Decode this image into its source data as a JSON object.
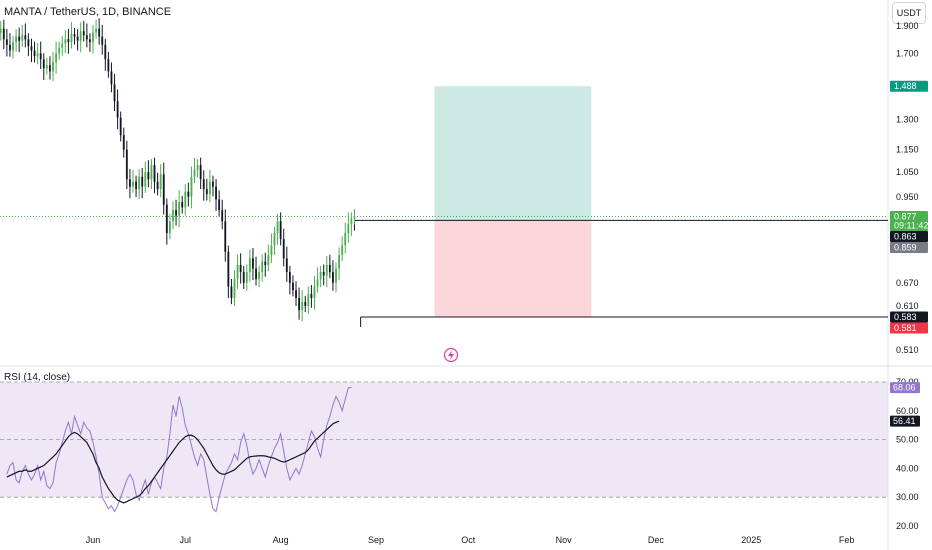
{
  "header": {
    "title": "MANTA / TetherUS, 1D, BINANCE",
    "currency": "USDT"
  },
  "colors": {
    "up": "#26a69a",
    "candle_up": "#4caf50",
    "candle_down": "#131722",
    "tp_zone": "#cde9e3",
    "sl_zone": "#fbd6da",
    "rsi": "#9575cd",
    "rsi_ma": "#131722",
    "rsi_band": "#ede7f6"
  },
  "icons": {
    "lightning": "lightning-icon"
  },
  "chart_data": [
    {
      "type": "candlestick",
      "title": "MANTA / TetherUS, 1D, BINANCE",
      "y_ticks": [
        1.9,
        1.7,
        1.3,
        1.15,
        1.05,
        0.95,
        0.67,
        0.61,
        0.51
      ],
      "y_tick_labels": [
        "1.900",
        "1.700",
        "1.300",
        "1.150",
        "1.050",
        "0.950",
        "0.670",
        "0.610",
        "0.510"
      ],
      "y_scale": "log",
      "x_tick_labels": [
        "Jun",
        "Jul",
        "Aug",
        "Sep",
        "Oct",
        "Nov",
        "Dec",
        "2025",
        "Feb"
      ],
      "x_tick_dates": [
        "2024-06-01",
        "2024-07-01",
        "2024-08-01",
        "2024-09-01",
        "2024-10-01",
        "2024-11-01",
        "2024-12-01",
        "2025-01-01",
        "2025-02-01"
      ],
      "ohlc_start": "2024-05-01",
      "closes": [
        1.85,
        1.88,
        1.8,
        1.76,
        1.72,
        1.78,
        1.82,
        1.79,
        1.83,
        1.8,
        1.75,
        1.72,
        1.68,
        1.7,
        1.66,
        1.6,
        1.62,
        1.58,
        1.64,
        1.7,
        1.74,
        1.77,
        1.8,
        1.78,
        1.84,
        1.82,
        1.79,
        1.86,
        1.83,
        1.8,
        1.78,
        1.85,
        1.88,
        1.82,
        1.76,
        1.66,
        1.58,
        1.5,
        1.4,
        1.31,
        1.22,
        1.15,
        1.02,
        0.99,
        1.01,
        0.98,
        1.03,
        0.99,
        1.05,
        1.02,
        1.08,
        1.01,
        0.98,
        1.04,
        0.92,
        0.82,
        0.86,
        0.9,
        0.88,
        0.93,
        0.91,
        0.97,
        0.95,
        1.03,
        1.06,
        1.08,
        1.02,
        0.98,
        0.96,
        1.01,
        0.99,
        0.94,
        0.9,
        0.86,
        0.76,
        0.66,
        0.63,
        0.68,
        0.72,
        0.7,
        0.67,
        0.7,
        0.74,
        0.71,
        0.68,
        0.7,
        0.73,
        0.72,
        0.75,
        0.78,
        0.82,
        0.86,
        0.8,
        0.74,
        0.7,
        0.67,
        0.65,
        0.63,
        0.6,
        0.62,
        0.61,
        0.64,
        0.63,
        0.66,
        0.68,
        0.7,
        0.69,
        0.72,
        0.7,
        0.67,
        0.71,
        0.75,
        0.78,
        0.82,
        0.85,
        0.87,
        0.877
      ],
      "opens": [
        1.8,
        1.85,
        1.88,
        1.8,
        1.76,
        1.72,
        1.78,
        1.82,
        1.79,
        1.83,
        1.8,
        1.75,
        1.72,
        1.68,
        1.7,
        1.66,
        1.6,
        1.62,
        1.58,
        1.64,
        1.7,
        1.74,
        1.77,
        1.8,
        1.78,
        1.84,
        1.82,
        1.79,
        1.86,
        1.83,
        1.8,
        1.78,
        1.85,
        1.88,
        1.82,
        1.76,
        1.66,
        1.58,
        1.5,
        1.4,
        1.31,
        1.22,
        1.15,
        1.02,
        0.99,
        1.01,
        0.98,
        1.03,
        0.99,
        1.05,
        1.02,
        1.08,
        1.01,
        0.98,
        1.04,
        0.92,
        0.82,
        0.86,
        0.9,
        0.88,
        0.93,
        0.91,
        0.97,
        0.95,
        1.03,
        1.06,
        1.08,
        1.02,
        0.98,
        0.96,
        1.01,
        0.99,
        0.94,
        0.9,
        0.86,
        0.76,
        0.66,
        0.63,
        0.68,
        0.72,
        0.7,
        0.67,
        0.7,
        0.74,
        0.71,
        0.68,
        0.7,
        0.73,
        0.72,
        0.75,
        0.78,
        0.82,
        0.86,
        0.8,
        0.74,
        0.7,
        0.67,
        0.65,
        0.63,
        0.6,
        0.62,
        0.61,
        0.64,
        0.63,
        0.66,
        0.68,
        0.7,
        0.69,
        0.72,
        0.7,
        0.67,
        0.71,
        0.75,
        0.78,
        0.82,
        0.85,
        0.87
      ],
      "position": {
        "entry": 0.863,
        "take_profit": 1.488,
        "stop": 0.583,
        "start_date": "2024-09-20",
        "end_date": "2024-11-10"
      },
      "horizontal_lines": [
        {
          "value": 0.863,
          "from_date": "2024-08-25",
          "label": "0.863"
        },
        {
          "value": 0.583,
          "from_date": "2024-08-27",
          "label": "0.583"
        }
      ],
      "price_tags": [
        {
          "value": 1.488,
          "label": "1.488",
          "color": "#089981",
          "text_color": "#ffffff"
        },
        {
          "value": 0.877,
          "label": "0.877",
          "sublabel": "09:11:42",
          "color": "#4caf50",
          "text_color": "#ffffff"
        },
        {
          "value": 0.863,
          "label": "0.863",
          "color": "#131722",
          "text_color": "#ffffff"
        },
        {
          "value": 0.859,
          "label": "0.859",
          "color": "#787b86",
          "text_color": "#ffffff"
        },
        {
          "value": 0.583,
          "label": "0.583",
          "color": "#131722",
          "text_color": "#ffffff"
        },
        {
          "value": 0.581,
          "label": "0.581",
          "color": "#f23645",
          "text_color": "#ffffff"
        }
      ],
      "last_price": 0.877
    },
    {
      "type": "line",
      "title": "RSI (14, close)",
      "ylim": [
        20,
        70
      ],
      "y_ticks": [
        70,
        60,
        50,
        40,
        30,
        20
      ],
      "y_tick_labels": [
        "70.00",
        "60.00",
        "50.00",
        "40.00",
        "30.00",
        "20.00"
      ],
      "bands": [
        30,
        50,
        70
      ],
      "series": [
        {
          "name": "RSI",
          "values": [
            38,
            41,
            42,
            36,
            35,
            39,
            41,
            38,
            36,
            38,
            41,
            36,
            39,
            34,
            33,
            35,
            42,
            45,
            49,
            53,
            56,
            52,
            58,
            55,
            52,
            56,
            54,
            53,
            49,
            44,
            38,
            30,
            28,
            26,
            27,
            25,
            27,
            30,
            33,
            36,
            38,
            36,
            31,
            29,
            33,
            36,
            31,
            35,
            37,
            35,
            33,
            40,
            44,
            52,
            62,
            58,
            65,
            61,
            55,
            52,
            48,
            44,
            41,
            45,
            43,
            37,
            31,
            26,
            25,
            30,
            34,
            38,
            40,
            42,
            45,
            43,
            49,
            52,
            48,
            42,
            38,
            40,
            43,
            40,
            37,
            41,
            44,
            47,
            49,
            52,
            46,
            40,
            36,
            38,
            40,
            38,
            41,
            45,
            49,
            53,
            51,
            47,
            44,
            50,
            55,
            58,
            62,
            65,
            63,
            60,
            64,
            68,
            68.06
          ]
        },
        {
          "name": "RSI-based MA",
          "values": [
            37,
            37.5,
            38,
            38.5,
            39,
            39,
            39.5,
            39,
            39,
            39.5,
            40,
            40.5,
            41,
            42,
            43,
            44,
            45,
            46.5,
            48,
            49.5,
            51,
            52,
            52.5,
            52,
            51,
            50,
            49,
            47,
            45,
            42,
            40,
            37,
            35,
            33,
            31.5,
            30,
            29,
            28.5,
            28,
            28.5,
            29,
            29.5,
            30,
            30.5,
            31.5,
            33,
            34,
            35.5,
            37,
            38.5,
            40,
            41.5,
            43,
            44.5,
            46,
            47.5,
            49,
            50,
            51,
            51.5,
            51.5,
            51,
            50,
            48.5,
            47,
            45,
            43,
            41,
            39.5,
            38.5,
            38,
            38,
            38.5,
            39,
            39.5,
            40.5,
            41.5,
            42.5,
            43.5,
            44,
            44.2,
            44.3,
            44.4,
            44.4,
            44.3,
            44,
            43.8,
            43.5,
            43,
            42.5,
            42.2,
            42.5,
            43,
            43.5,
            44,
            44.5,
            45,
            45.5,
            46.5,
            48,
            49.5,
            50.5,
            51.5,
            52.5,
            53.5,
            54.5,
            55.5,
            56,
            56.41
          ]
        }
      ],
      "value_tags": [
        {
          "value": 68.06,
          "label": "68.06",
          "color": "#9575cd"
        },
        {
          "value": 56.41,
          "label": "56.41",
          "color": "#131722"
        }
      ]
    }
  ]
}
